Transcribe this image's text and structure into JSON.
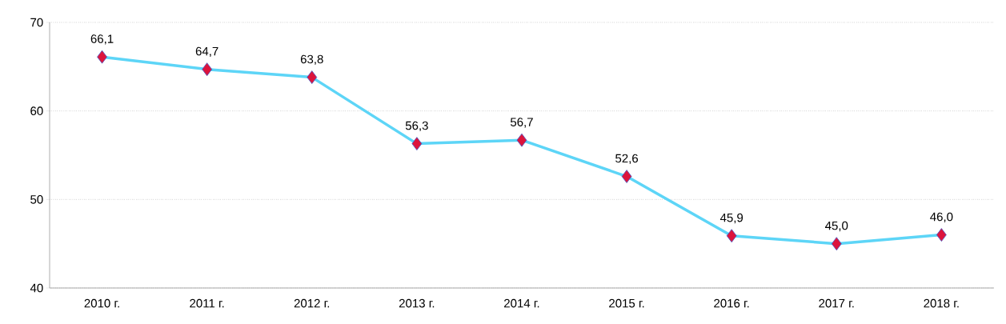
{
  "chart_data": {
    "type": "line",
    "categories": [
      "2010 г.",
      "2011 г.",
      "2012 г.",
      "2013 г.",
      "2014 г.",
      "2015 г.",
      "2016 г.",
      "2017 г.",
      "2018 г."
    ],
    "series": [
      {
        "color": "#5dd5f7",
        "values": [
          66.1,
          64.7,
          63.8,
          56.3,
          56.7,
          52.6,
          45.9,
          45.0,
          46.0
        ],
        "value_labels": [
          "66,1",
          "64,7",
          "63,8",
          "56,3",
          "56,7",
          "52,6",
          "45,9",
          "45,0",
          "46,0"
        ]
      }
    ],
    "ylim": [
      40,
      70
    ],
    "yticks": [
      40,
      50,
      60,
      70
    ],
    "grid": "y",
    "marker": "diamond",
    "line_style": "solid"
  }
}
